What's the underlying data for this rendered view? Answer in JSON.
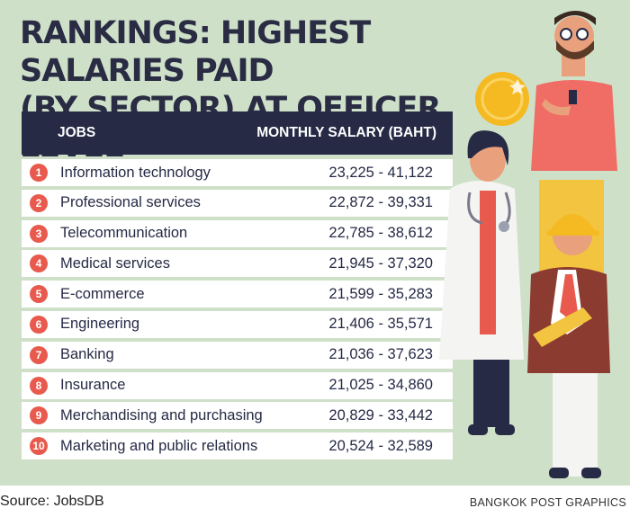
{
  "title_line1": "RANKINGS: HIGHEST SALARIES PAID",
  "title_line2": "(BY SECTOR) AT OFFICER LEVEL",
  "header": {
    "jobs": "JOBS",
    "salary": "MONTHLY SALARY (BAHT)"
  },
  "chart_data": {
    "type": "table",
    "columns": [
      "JOBS",
      "MONTHLY SALARY (BAHT)"
    ],
    "rows": [
      {
        "rank": "1",
        "job": "Information technology",
        "salary": "23,225 - 41,122",
        "min": 23225,
        "max": 41122
      },
      {
        "rank": "2",
        "job": "Professional services",
        "salary": "22,872 - 39,331",
        "min": 22872,
        "max": 39331
      },
      {
        "rank": "3",
        "job": "Telecommunication",
        "salary": "22,785 - 38,612",
        "min": 22785,
        "max": 38612
      },
      {
        "rank": "4",
        "job": "Medical services",
        "salary": "21,945 - 37,320",
        "min": 21945,
        "max": 37320
      },
      {
        "rank": "5",
        "job": "E-commerce",
        "salary": "21,599 - 35,283",
        "min": 21599,
        "max": 35283
      },
      {
        "rank": "6",
        "job": "Engineering",
        "salary": "21,406 - 35,571",
        "min": 21406,
        "max": 35571
      },
      {
        "rank": "7",
        "job": "Banking",
        "salary": "21,036 - 37,623",
        "min": 21036,
        "max": 37623
      },
      {
        "rank": "8",
        "job": "Insurance",
        "salary": "21,025 - 34,860",
        "min": 21025,
        "max": 34860
      },
      {
        "rank": "9",
        "job": "Merchandising and purchasing",
        "salary": "20,829 - 33,442",
        "min": 20829,
        "max": 33442
      },
      {
        "rank": "10",
        "job": "Marketing and public relations",
        "salary": "20,524 - 32,589",
        "min": 20524,
        "max": 32589
      }
    ]
  },
  "footer": {
    "source": "Source: JobsDB",
    "credit": "BANGKOK POST GRAPHICS"
  },
  "colors": {
    "background": "#cfe0c9",
    "header": "#262a45",
    "rank_badge": "#e85a4e",
    "coin": "#f5b921"
  }
}
